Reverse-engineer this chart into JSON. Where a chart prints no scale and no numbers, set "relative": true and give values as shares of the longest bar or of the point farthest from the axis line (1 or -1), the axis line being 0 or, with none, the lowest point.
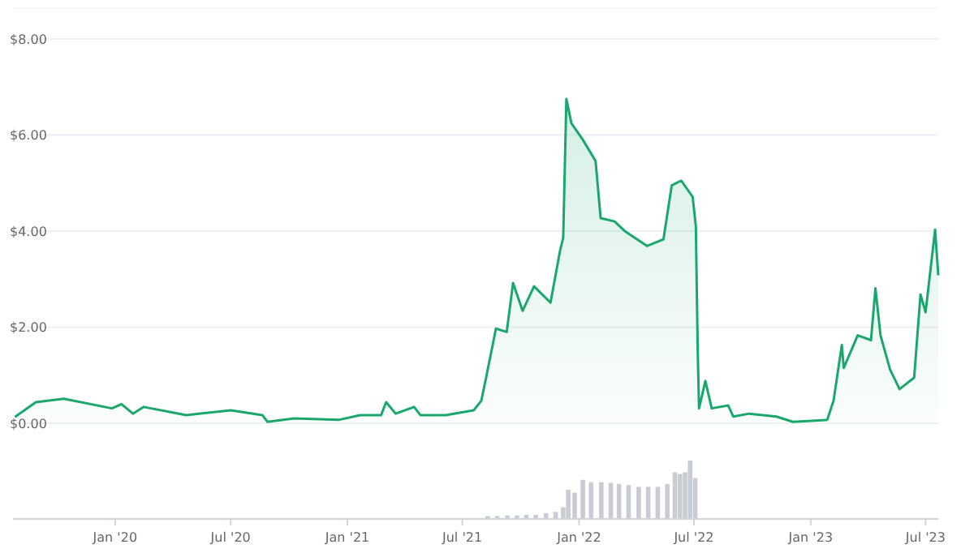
{
  "chart_data": [
    {
      "type": "area",
      "x": [
        "2019-07-27",
        "2019-08-29",
        "2019-10-12",
        "2019-12-27",
        "2020-01-11",
        "2020-01-29",
        "2020-02-15",
        "2020-04-22",
        "2020-07-01",
        "2020-08-20",
        "2020-08-28",
        "2020-10-09",
        "2020-12-18",
        "2021-01-21",
        "2021-02-23",
        "2021-03-03",
        "2021-03-18",
        "2021-04-16",
        "2021-04-26",
        "2021-06-05",
        "2021-07-19",
        "2021-07-31",
        "2021-08-08",
        "2021-08-23",
        "2021-09-09",
        "2021-09-19",
        "2021-10-04",
        "2021-10-22",
        "2021-11-17",
        "2021-12-02",
        "2021-12-07",
        "2021-12-12",
        "2021-12-20",
        "2022-01-07",
        "2022-01-27",
        "2022-02-04",
        "2022-02-26",
        "2022-03-14",
        "2022-04-18",
        "2022-05-14",
        "2022-05-27",
        "2022-06-11",
        "2022-06-29",
        "2022-07-04",
        "2022-07-07",
        "2022-07-09",
        "2022-07-19",
        "2022-07-29",
        "2022-08-24",
        "2022-09-01",
        "2022-09-26",
        "2022-11-08",
        "2022-12-04",
        "2023-01-27",
        "2023-02-06",
        "2023-02-19",
        "2023-02-22",
        "2023-03-16",
        "2023-04-06",
        "2023-04-13",
        "2023-04-21",
        "2023-05-06",
        "2023-05-21",
        "2023-06-13",
        "2023-06-23",
        "2023-07-01",
        "2023-07-16",
        "2023-07-21"
      ],
      "series": [
        {
          "color": "#1aa76e",
          "values": [
            0.13,
            0.44,
            0.51,
            0.31,
            0.4,
            0.2,
            0.34,
            0.17,
            0.27,
            0.17,
            0.03,
            0.1,
            0.07,
            0.17,
            0.17,
            0.44,
            0.2,
            0.34,
            0.17,
            0.17,
            0.27,
            0.47,
            0.98,
            1.97,
            1.9,
            2.92,
            2.34,
            2.85,
            2.51,
            3.59,
            3.86,
            6.75,
            6.24,
            5.9,
            5.46,
            4.27,
            4.2,
            4.0,
            3.69,
            3.83,
            4.95,
            5.05,
            4.71,
            4.1,
            1.49,
            0.31,
            0.88,
            0.31,
            0.37,
            0.14,
            0.2,
            0.14,
            0.03,
            0.07,
            0.47,
            1.63,
            1.15,
            1.83,
            1.73,
            2.81,
            1.83,
            1.12,
            0.71,
            0.95,
            2.68,
            2.31,
            4.03,
            3.08
          ]
        }
      ],
      "xlim": [
        "2019-07-24",
        "2023-07-21"
      ],
      "ylim": [
        0,
        8.64
      ],
      "yticks": [
        {
          "value": 0,
          "label": "$0.00"
        },
        {
          "value": 2,
          "label": "$2.00"
        },
        {
          "value": 4,
          "label": "$4.00"
        },
        {
          "value": 6,
          "label": "$6.00"
        },
        {
          "value": 8,
          "label": "$8.00"
        }
      ],
      "grid": "y",
      "tick_labels": "y"
    },
    {
      "type": "bar",
      "relative": true,
      "x": [
        "2021-08-10",
        "2021-08-25",
        "2021-09-10",
        "2021-09-25",
        "2021-10-10",
        "2021-10-25",
        "2021-11-10",
        "2021-11-25",
        "2021-12-07",
        "2021-12-15",
        "2021-12-25",
        "2022-01-07",
        "2022-01-20",
        "2022-02-05",
        "2022-02-20",
        "2022-03-05",
        "2022-03-20",
        "2022-04-05",
        "2022-04-20",
        "2022-05-05",
        "2022-05-20",
        "2022-06-01",
        "2022-06-09",
        "2022-06-17",
        "2022-06-25",
        "2022-07-03"
      ],
      "series": [
        {
          "color": "#c9ccd3",
          "values": [
            0.05,
            0.05,
            0.06,
            0.06,
            0.07,
            0.07,
            0.1,
            0.12,
            0.2,
            0.5,
            0.45,
            0.67,
            0.63,
            0.63,
            0.62,
            0.6,
            0.58,
            0.55,
            0.55,
            0.55,
            0.6,
            0.8,
            0.77,
            0.8,
            1,
            0.7
          ]
        }
      ],
      "xlim": [
        "2019-07-24",
        "2023-07-21"
      ],
      "xticks": [
        {
          "value": "2020-01-01",
          "label": "Jan '20"
        },
        {
          "value": "2020-07-01",
          "label": "Jul '20"
        },
        {
          "value": "2021-01-01",
          "label": "Jan '21"
        },
        {
          "value": "2021-07-01",
          "label": "Jul '21"
        },
        {
          "value": "2022-01-01",
          "label": "Jan '22"
        },
        {
          "value": "2022-07-01",
          "label": "Jul '22"
        },
        {
          "value": "2023-01-01",
          "label": "Jan '23"
        },
        {
          "value": "2023-07-01",
          "label": "Jul '23"
        }
      ],
      "tick_labels": "x"
    }
  ]
}
